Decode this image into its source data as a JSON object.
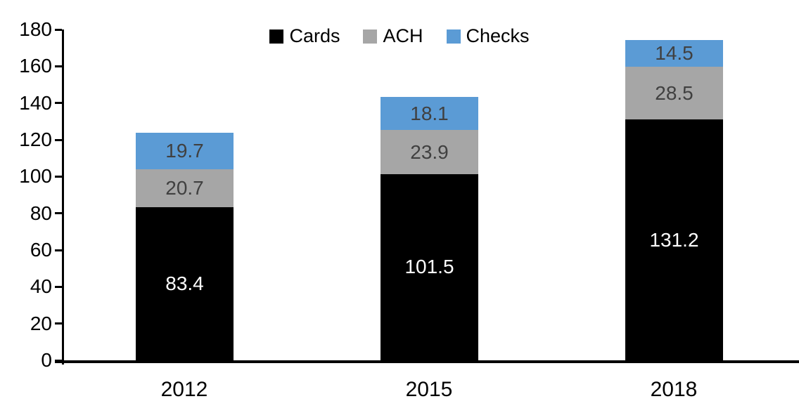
{
  "chart_data": {
    "type": "bar",
    "stacked": true,
    "categories": [
      "2012",
      "2015",
      "2018"
    ],
    "series": [
      {
        "name": "Cards",
        "color": "#000000",
        "label_color": "#ffffff",
        "values": [
          83.4,
          101.5,
          131.2
        ]
      },
      {
        "name": "ACH",
        "color": "#a6a6a6",
        "label_color": "#404040",
        "values": [
          20.7,
          23.9,
          28.5
        ]
      },
      {
        "name": "Checks",
        "color": "#5b9bd5",
        "label_color": "#404040",
        "values": [
          19.7,
          18.1,
          14.5
        ]
      }
    ],
    "ylim": [
      0,
      180
    ],
    "yticks": [
      0,
      20,
      40,
      60,
      80,
      100,
      120,
      140,
      160,
      180
    ],
    "legend_position": "top",
    "legend_labels": [
      "Cards",
      "ACH",
      "Checks"
    ],
    "grid": false,
    "bar_value_labels": true,
    "value_label_decimals": 1,
    "axis_color": "#000000",
    "background_color": "#ffffff"
  }
}
